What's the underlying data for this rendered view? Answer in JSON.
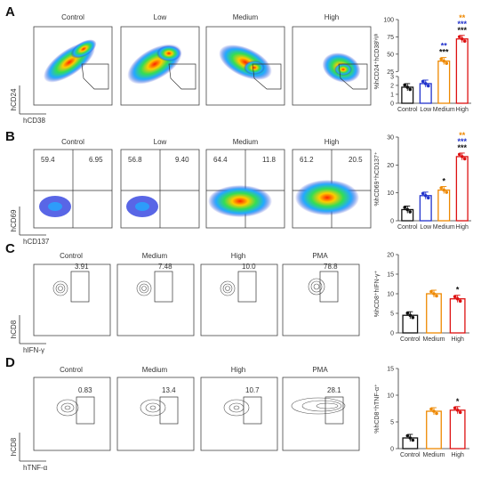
{
  "panels": [
    {
      "letter": "A",
      "kind": "density",
      "plots": [
        {
          "title": "Control",
          "gate": ""
        },
        {
          "title": "Low",
          "gate": ""
        },
        {
          "title": "Medium",
          "gate": ""
        },
        {
          "title": "High",
          "gate": ""
        }
      ],
      "y_axis_label": "hCD24",
      "x_axis_label": "hCD38",
      "chart": {
        "type": "bar",
        "ylabel": "%hCD24⁺hCD38ʰⁱᵍʰ",
        "categories": [
          "Control",
          "Low",
          "Medium",
          "High"
        ],
        "values": [
          1.8,
          2.2,
          40,
          72
        ],
        "yticks": [
          "0",
          "1",
          "2",
          "3",
          "25",
          "50",
          "75",
          "100"
        ],
        "stars": [
          {
            "index": 2,
            "rows": [
              {
                "text": "**",
                "color": "#2233cc"
              },
              {
                "text": "***",
                "color": "#111111"
              }
            ]
          },
          {
            "index": 3,
            "rows": [
              {
                "text": "**",
                "color": "#ee8800"
              },
              {
                "text": "***",
                "color": "#2233cc"
              },
              {
                "text": "***",
                "color": "#111111"
              }
            ]
          }
        ]
      }
    },
    {
      "letter": "B",
      "kind": "quadrant",
      "plots": [
        {
          "title": "Control",
          "q_left": "59.4",
          "q_right": "6.95"
        },
        {
          "title": "Low",
          "q_left": "56.8",
          "q_right": "9.40"
        },
        {
          "title": "Medium",
          "q_left": "64.4",
          "q_right": "11.8"
        },
        {
          "title": "High",
          "q_left": "61.2",
          "q_right": "20.5"
        }
      ],
      "y_axis_label": "hCD69",
      "x_axis_label": "hCD137",
      "chart": {
        "type": "bar",
        "ylabel": "%hCD69⁺hCD137⁺",
        "categories": [
          "Control",
          "Low",
          "Medium",
          "High"
        ],
        "values": [
          4,
          9,
          11,
          23
        ],
        "yticks": [
          "0",
          "10",
          "20",
          "30"
        ],
        "ylim": [
          0,
          30
        ],
        "stars": [
          {
            "index": 2,
            "rows": [
              {
                "text": "*",
                "color": "#111111"
              }
            ]
          },
          {
            "index": 3,
            "rows": [
              {
                "text": "**",
                "color": "#ee8800"
              },
              {
                "text": "***",
                "color": "#2233cc"
              },
              {
                "text": "***",
                "color": "#111111"
              }
            ]
          }
        ]
      }
    },
    {
      "letter": "C",
      "kind": "contour",
      "plots": [
        {
          "title": "Control",
          "gate": "3.91"
        },
        {
          "title": "Medium",
          "gate": "7.48"
        },
        {
          "title": "High",
          "gate": "10.0"
        },
        {
          "title": "PMA",
          "gate": "78.8"
        }
      ],
      "y_axis_label": "hCD8",
      "x_axis_label": "hIFN-γ",
      "chart": {
        "type": "bar",
        "ylabel": "%hCD8⁺hIFN-γ⁺",
        "categories": [
          "Control",
          "Medium",
          "High"
        ],
        "values": [
          4.5,
          10,
          8.7
        ],
        "yticks": [
          "0",
          "5",
          "10",
          "15",
          "20"
        ],
        "ylim": [
          0,
          20
        ],
        "stars": [
          {
            "index": 2,
            "rows": [
              {
                "text": "*",
                "color": "#111111"
              }
            ]
          }
        ]
      }
    },
    {
      "letter": "D",
      "kind": "contour",
      "plots": [
        {
          "title": "Control",
          "gate": "0.83"
        },
        {
          "title": "Medium",
          "gate": "13.4"
        },
        {
          "title": "High",
          "gate": "10.7"
        },
        {
          "title": "PMA",
          "gate": "28.1"
        }
      ],
      "y_axis_label": "hCD8",
      "x_axis_label": "hTNF-α",
      "chart": {
        "type": "bar",
        "ylabel": "%hCD8⁺hTNF-α⁺",
        "categories": [
          "Control",
          "Medium",
          "High"
        ],
        "values": [
          2,
          7,
          7.2
        ],
        "yticks": [
          "0",
          "5",
          "10",
          "15"
        ],
        "ylim": [
          0,
          15
        ],
        "stars": [
          {
            "index": 2,
            "rows": [
              {
                "text": "*",
                "color": "#111111"
              }
            ]
          }
        ]
      }
    }
  ],
  "colors": {
    "control": "#111111",
    "low": "#2233cc",
    "medium": "#ee8800",
    "high": "#dd1111"
  }
}
